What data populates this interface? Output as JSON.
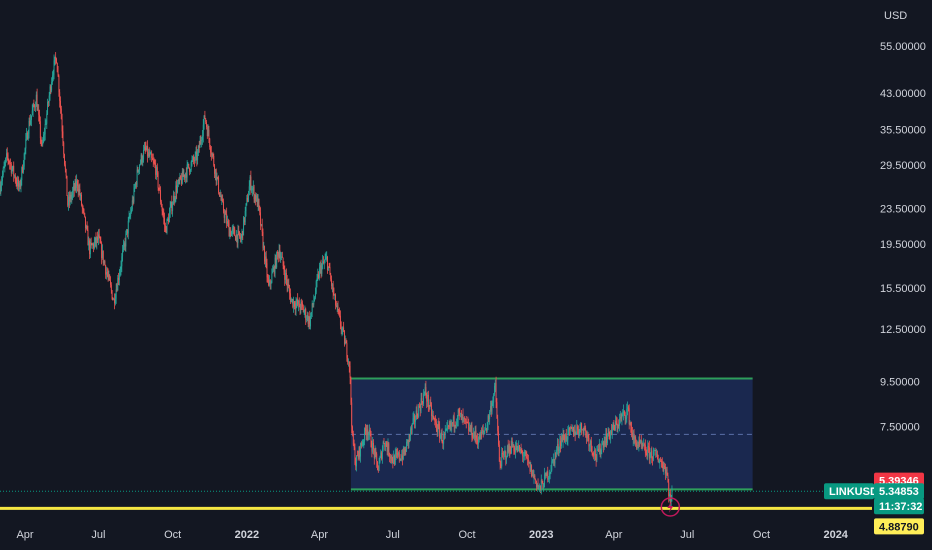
{
  "chart_data": {
    "type": "candlestick",
    "symbol": "LINKUSD",
    "currency": "USD",
    "y_scale": "log",
    "ylim": [
      4.6,
      70
    ],
    "y_ticks": [
      "55.00000",
      "43.00000",
      "35.50000",
      "29.50000",
      "23.50000",
      "19.50000",
      "15.50000",
      "12.50000",
      "9.50000",
      "7.50000"
    ],
    "x_ticks": [
      "Apr",
      "Jul",
      "Oct",
      "2022",
      "Apr",
      "Jul",
      "Oct",
      "2023",
      "Apr",
      "Jul",
      "Oct",
      "2024"
    ],
    "x_range": [
      "2021-03-01",
      "2024-02-15"
    ],
    "bold_ticks": [
      "2022",
      "2023",
      "2024"
    ],
    "x_tick_dates": [
      "2021-04-01",
      "2021-07-01",
      "2021-10-01",
      "2022-01-01",
      "2022-04-01",
      "2022-07-01",
      "2022-10-01",
      "2023-01-01",
      "2023-04-01",
      "2023-07-01",
      "2023-10-01",
      "2024-01-01"
    ],
    "price_path": [
      [
        "2021-03-01",
        26.5
      ],
      [
        "2021-03-10",
        31
      ],
      [
        "2021-03-25",
        26
      ],
      [
        "2021-04-05",
        36
      ],
      [
        "2021-04-15",
        42
      ],
      [
        "2021-04-22",
        32
      ],
      [
        "2021-05-05",
        48
      ],
      [
        "2021-05-10",
        52
      ],
      [
        "2021-05-18",
        34
      ],
      [
        "2021-05-24",
        24
      ],
      [
        "2021-06-05",
        27
      ],
      [
        "2021-06-20",
        19
      ],
      [
        "2021-07-01",
        20
      ],
      [
        "2021-07-20",
        14.5
      ],
      [
        "2021-08-10",
        23
      ],
      [
        "2021-08-20",
        29.5
      ],
      [
        "2021-08-28",
        32
      ],
      [
        "2021-09-10",
        29
      ],
      [
        "2021-09-22",
        21
      ],
      [
        "2021-10-05",
        26
      ],
      [
        "2021-10-20",
        29
      ],
      [
        "2021-11-01",
        31
      ],
      [
        "2021-11-10",
        38
      ],
      [
        "2021-11-15",
        34
      ],
      [
        "2021-12-01",
        24
      ],
      [
        "2021-12-10",
        21
      ],
      [
        "2021-12-25",
        20
      ],
      [
        "2022-01-05",
        27
      ],
      [
        "2022-01-15",
        24
      ],
      [
        "2022-01-28",
        15.5
      ],
      [
        "2022-02-10",
        19
      ],
      [
        "2022-02-25",
        14.5
      ],
      [
        "2022-03-10",
        14
      ],
      [
        "2022-03-20",
        13
      ],
      [
        "2022-04-01",
        17
      ],
      [
        "2022-04-10",
        18
      ],
      [
        "2022-04-20",
        14.5
      ],
      [
        "2022-05-01",
        12
      ],
      [
        "2022-05-08",
        10.5
      ],
      [
        "2022-05-12",
        7.0
      ],
      [
        "2022-05-16",
        6.2
      ],
      [
        "2022-05-30",
        7.5
      ],
      [
        "2022-06-13",
        6.0
      ],
      [
        "2022-06-20",
        7.0
      ],
      [
        "2022-07-01",
        6.3
      ],
      [
        "2022-07-15",
        6.5
      ],
      [
        "2022-07-28",
        7.8
      ],
      [
        "2022-08-10",
        9.0
      ],
      [
        "2022-08-20",
        7.8
      ],
      [
        "2022-09-01",
        7.0
      ],
      [
        "2022-09-20",
        8.0
      ],
      [
        "2022-10-01",
        7.5
      ],
      [
        "2022-10-15",
        7.0
      ],
      [
        "2022-10-25",
        7.5
      ],
      [
        "2022-11-05",
        9.2
      ],
      [
        "2022-11-10",
        6.2
      ],
      [
        "2022-11-25",
        6.8
      ],
      [
        "2022-12-10",
        6.5
      ],
      [
        "2022-12-30",
        5.4
      ],
      [
        "2023-01-12",
        6.0
      ],
      [
        "2023-01-25",
        7.0
      ],
      [
        "2023-02-08",
        7.3
      ],
      [
        "2023-02-22",
        7.5
      ],
      [
        "2023-03-10",
        6.4
      ],
      [
        "2023-03-20",
        7.0
      ],
      [
        "2023-04-05",
        7.6
      ],
      [
        "2023-04-18",
        8.2
      ],
      [
        "2023-04-25",
        7.0
      ],
      [
        "2023-05-10",
        6.6
      ],
      [
        "2023-05-25",
        6.4
      ],
      [
        "2023-06-05",
        6.0
      ],
      [
        "2023-06-10",
        5.0
      ],
      [
        "2023-06-12",
        5.3
      ]
    ],
    "range_box": {
      "x0": "2022-05-10",
      "x1": "2023-09-20",
      "upper": 9.65,
      "lower": 5.4,
      "mid": 7.2
    },
    "support_line": 4.8879,
    "labels": {
      "prev_close": "5.39346",
      "symbol_tag": "LINKUSD",
      "last_price": "5.34853",
      "countdown": "11:37:32",
      "support_price": "4.88790"
    },
    "colors": {
      "background": "#131722",
      "up": "#26a69a",
      "down": "#ef5350",
      "box_fill": "#1c2b57",
      "box_line": "#2e9e5b",
      "box_mid": "#5b6fa8",
      "support": "#f5e642",
      "prev_close_tag": "#f23645",
      "last_price_tag": "#089981",
      "support_tag": "#ffee58",
      "axis_text": "#d1d4dc",
      "event_icon": "#c2185b"
    },
    "event_marker": {
      "date": "2023-06-10",
      "icon": "lightning-icon"
    }
  }
}
